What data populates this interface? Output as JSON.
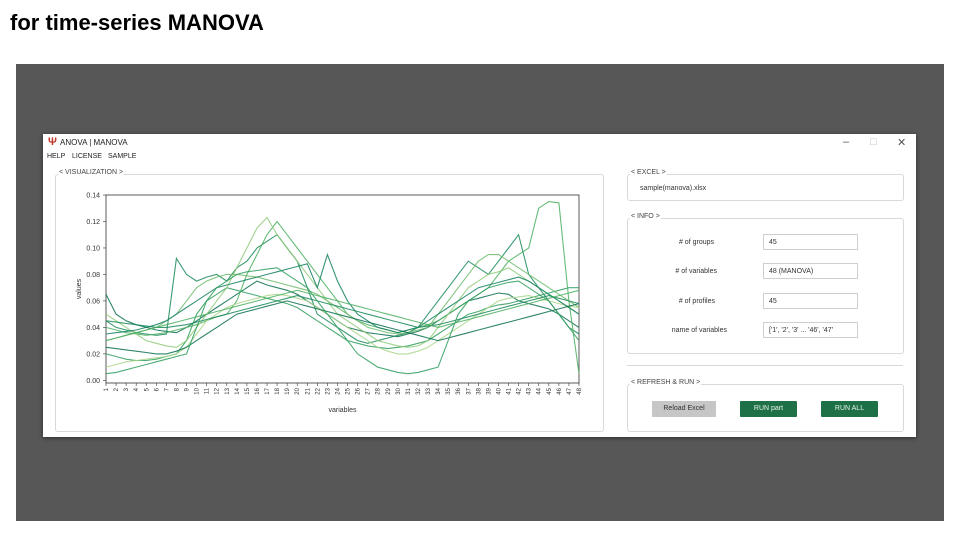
{
  "slide": {
    "title": "for time-series MANOVA"
  },
  "window": {
    "title": "ANOVA | MANOVA",
    "icon": "psi-logo-icon",
    "controls": {
      "minimize": "–",
      "maximize": "□",
      "close": "✕"
    }
  },
  "menu": {
    "items": [
      "HELP",
      "LICENSE",
      "SAMPLE"
    ]
  },
  "visualization": {
    "label": "< VISUALIZATION >"
  },
  "excel": {
    "label": "< EXCEL >",
    "file": "sample(manova).xlsx"
  },
  "info": {
    "label": "< INFO >",
    "rows": [
      {
        "label": "# of groups",
        "value": "45"
      },
      {
        "label": "# of variables",
        "value": "48 (MANOVA)"
      },
      {
        "label": "# of profiles",
        "value": "45"
      },
      {
        "label": "name of variables",
        "value": "['1', '2', '3' ... '46', '47'"
      }
    ]
  },
  "refresh": {
    "label": "< REFRESH & RUN >",
    "buttons": {
      "reload": "Reload Excel",
      "run_part": "RUN part",
      "run_all": "RUN ALL"
    }
  },
  "chart_data": {
    "type": "line",
    "xlabel": "variables",
    "ylabel": "values",
    "x": [
      1,
      2,
      3,
      4,
      5,
      6,
      7,
      8,
      9,
      10,
      11,
      12,
      13,
      14,
      15,
      16,
      17,
      18,
      19,
      20,
      21,
      22,
      23,
      24,
      25,
      26,
      27,
      28,
      29,
      30,
      31,
      32,
      33,
      34,
      35,
      36,
      37,
      38,
      39,
      40,
      41,
      42,
      43,
      44,
      45,
      46,
      47,
      48
    ],
    "xticks": [
      "1",
      "2",
      "3",
      "4",
      "5",
      "6",
      "7",
      "8",
      "9",
      "10",
      "11",
      "12",
      "13",
      "14",
      "15",
      "16",
      "17",
      "18",
      "19",
      "20",
      "21",
      "22",
      "23",
      "24",
      "25",
      "26",
      "27",
      "28",
      "29",
      "30",
      "31",
      "32",
      "33",
      "34",
      "35",
      "36",
      "37",
      "38",
      "39",
      "40",
      "41",
      "42",
      "43",
      "44",
      "45",
      "46",
      "47",
      "48"
    ],
    "ylim": [
      -0.002,
      0.14
    ],
    "yticks": [
      "0.00",
      "0.02",
      "0.04",
      "0.06",
      "0.08",
      "0.10",
      "0.12",
      "0.14"
    ],
    "ytick_values": [
      0.0,
      0.02,
      0.04,
      0.06,
      0.08,
      0.1,
      0.12,
      0.14
    ],
    "grid": false,
    "colors": [
      "#0b6e4f",
      "#1a8a5a",
      "#2e9e5e",
      "#4caf62",
      "#6dbb6b",
      "#8fca7a",
      "#a9d68a",
      "#148060"
    ],
    "series": [
      {
        "values": [
          0.065,
          0.05,
          0.045,
          0.042,
          0.04,
          0.038,
          0.037,
          0.036,
          0.04,
          0.045,
          0.05,
          0.055,
          0.06,
          0.065,
          0.07,
          0.075,
          0.072,
          0.07,
          0.068,
          0.065,
          0.06,
          0.055,
          0.05,
          0.045,
          0.04,
          0.038,
          0.036,
          0.035,
          0.034,
          0.033,
          0.035,
          0.037,
          0.04,
          0.045,
          0.05,
          0.055,
          0.06,
          0.062,
          0.064,
          0.066,
          0.065,
          0.06,
          0.058,
          0.056,
          0.054,
          0.05,
          0.045,
          0.04
        ]
      },
      {
        "values": [
          0.045,
          0.04,
          0.038,
          0.036,
          0.035,
          0.034,
          0.035,
          0.092,
          0.08,
          0.075,
          0.078,
          0.08,
          0.075,
          0.085,
          0.09,
          0.1,
          0.105,
          0.11,
          0.1,
          0.09,
          0.07,
          0.05,
          0.045,
          0.04,
          0.035,
          0.03,
          0.028,
          0.03,
          0.032,
          0.034,
          0.036,
          0.04,
          0.05,
          0.06,
          0.07,
          0.08,
          0.09,
          0.085,
          0.08,
          0.09,
          0.1,
          0.11,
          0.08,
          0.07,
          0.06,
          0.05,
          0.04,
          0.035
        ]
      },
      {
        "values": [
          0.02,
          0.018,
          0.016,
          0.015,
          0.015,
          0.016,
          0.018,
          0.02,
          0.03,
          0.05,
          0.06,
          0.065,
          0.07,
          0.068,
          0.066,
          0.064,
          0.062,
          0.06,
          0.058,
          0.055,
          0.05,
          0.045,
          0.04,
          0.035,
          0.03,
          0.028,
          0.026,
          0.025,
          0.024,
          0.025,
          0.026,
          0.028,
          0.03,
          0.035,
          0.04,
          0.045,
          0.05,
          0.052,
          0.055,
          0.057,
          0.058,
          0.06,
          0.062,
          0.064,
          0.066,
          0.068,
          0.07,
          0.07
        ]
      },
      {
        "values": [
          0.04,
          0.038,
          0.036,
          0.035,
          0.034,
          0.035,
          0.036,
          0.038,
          0.04,
          0.042,
          0.045,
          0.048,
          0.05,
          0.06,
          0.08,
          0.095,
          0.11,
          0.12,
          0.11,
          0.1,
          0.09,
          0.08,
          0.07,
          0.06,
          0.05,
          0.045,
          0.042,
          0.04,
          0.038,
          0.036,
          0.038,
          0.04,
          0.042,
          0.045,
          0.05,
          0.055,
          0.06,
          0.065,
          0.07,
          0.08,
          0.09,
          0.095,
          0.1,
          0.13,
          0.135,
          0.134,
          0.06,
          0.005
        ]
      },
      {
        "values": [
          0.03,
          0.032,
          0.034,
          0.036,
          0.038,
          0.04,
          0.045,
          0.05,
          0.06,
          0.07,
          0.075,
          0.078,
          0.08,
          0.08,
          0.079,
          0.078,
          0.076,
          0.074,
          0.072,
          0.07,
          0.068,
          0.065,
          0.06,
          0.055,
          0.05,
          0.045,
          0.04,
          0.038,
          0.036,
          0.035,
          0.036,
          0.038,
          0.04,
          0.05,
          0.06,
          0.07,
          0.08,
          0.09,
          0.095,
          0.095,
          0.09,
          0.085,
          0.08,
          0.075,
          0.07,
          0.065,
          0.06,
          0.055
        ]
      },
      {
        "values": [
          0.05,
          0.045,
          0.04,
          0.035,
          0.03,
          0.028,
          0.026,
          0.025,
          0.03,
          0.04,
          0.05,
          0.06,
          0.07,
          0.085,
          0.1,
          0.115,
          0.123,
          0.11,
          0.1,
          0.09,
          0.08,
          0.07,
          0.06,
          0.05,
          0.045,
          0.04,
          0.035,
          0.03,
          0.028,
          0.026,
          0.025,
          0.026,
          0.03,
          0.04,
          0.05,
          0.06,
          0.07,
          0.075,
          0.08,
          0.082,
          0.085,
          0.08,
          0.075,
          0.07,
          0.065,
          0.06,
          0.055,
          0.05
        ]
      },
      {
        "values": [
          0.01,
          0.012,
          0.014,
          0.015,
          0.016,
          0.017,
          0.018,
          0.02,
          0.025,
          0.035,
          0.045,
          0.05,
          0.055,
          0.058,
          0.06,
          0.062,
          0.064,
          0.065,
          0.064,
          0.062,
          0.06,
          0.055,
          0.05,
          0.045,
          0.04,
          0.035,
          0.03,
          0.025,
          0.022,
          0.02,
          0.02,
          0.022,
          0.025,
          0.03,
          0.035,
          0.04,
          0.045,
          0.05,
          0.055,
          0.06,
          0.062,
          0.063,
          0.064,
          0.062,
          0.06,
          0.058,
          0.056,
          0.055
        ]
      },
      {
        "values": [
          0.035,
          0.036,
          0.037,
          0.038,
          0.04,
          0.042,
          0.045,
          0.05,
          0.055,
          0.06,
          0.065,
          0.07,
          0.072,
          0.074,
          0.076,
          0.078,
          0.08,
          0.082,
          0.084,
          0.086,
          0.088,
          0.07,
          0.095,
          0.075,
          0.06,
          0.05,
          0.045,
          0.04,
          0.038,
          0.036,
          0.038,
          0.04,
          0.045,
          0.05,
          0.055,
          0.06,
          0.065,
          0.07,
          0.072,
          0.074,
          0.076,
          0.078,
          0.075,
          0.07,
          0.065,
          0.06,
          0.055,
          0.05
        ]
      },
      {
        "values": [
          0.025,
          0.024,
          0.023,
          0.022,
          0.021,
          0.02,
          0.02,
          0.022,
          0.025,
          0.03,
          0.035,
          0.04,
          0.045,
          0.05,
          0.052,
          0.054,
          0.056,
          0.058,
          0.06,
          0.058,
          0.056,
          0.054,
          0.052,
          0.05,
          0.048,
          0.046,
          0.044,
          0.042,
          0.04,
          0.038,
          0.036,
          0.034,
          0.032,
          0.03,
          0.032,
          0.034,
          0.036,
          0.038,
          0.04,
          0.042,
          0.044,
          0.046,
          0.048,
          0.05,
          0.052,
          0.054,
          0.056,
          0.058
        ]
      },
      {
        "values": [
          0.045,
          0.044,
          0.043,
          0.042,
          0.041,
          0.04,
          0.04,
          0.041,
          0.042,
          0.044,
          0.046,
          0.048,
          0.05,
          0.052,
          0.054,
          0.056,
          0.058,
          0.06,
          0.062,
          0.064,
          0.062,
          0.06,
          0.058,
          0.056,
          0.054,
          0.052,
          0.05,
          0.048,
          0.046,
          0.044,
          0.042,
          0.04,
          0.041,
          0.042,
          0.044,
          0.046,
          0.048,
          0.05,
          0.052,
          0.054,
          0.056,
          0.058,
          0.06,
          0.062,
          0.064,
          0.062,
          0.06,
          0.058
        ]
      },
      {
        "values": [
          0.005,
          0.006,
          0.008,
          0.01,
          0.012,
          0.014,
          0.016,
          0.018,
          0.02,
          0.04,
          0.06,
          0.07,
          0.075,
          0.08,
          0.082,
          0.083,
          0.084,
          0.085,
          0.08,
          0.075,
          0.07,
          0.06,
          0.05,
          0.04,
          0.03,
          0.02,
          0.015,
          0.01,
          0.008,
          0.006,
          0.005,
          0.006,
          0.008,
          0.01,
          0.03,
          0.05,
          0.06,
          0.065,
          0.07,
          0.072,
          0.074,
          0.075,
          0.07,
          0.065,
          0.06,
          0.05,
          0.04,
          0.03
        ]
      },
      {
        "values": [
          0.03,
          0.032,
          0.034,
          0.036,
          0.038,
          0.04,
          0.042,
          0.044,
          0.046,
          0.048,
          0.05,
          0.052,
          0.054,
          0.056,
          0.058,
          0.06,
          0.062,
          0.064,
          0.066,
          0.068,
          0.066,
          0.064,
          0.062,
          0.06,
          0.058,
          0.056,
          0.054,
          0.052,
          0.05,
          0.048,
          0.046,
          0.044,
          0.042,
          0.04,
          0.042,
          0.044,
          0.046,
          0.048,
          0.05,
          0.052,
          0.054,
          0.056,
          0.058,
          0.06,
          0.062,
          0.064,
          0.066,
          0.068
        ]
      }
    ]
  }
}
